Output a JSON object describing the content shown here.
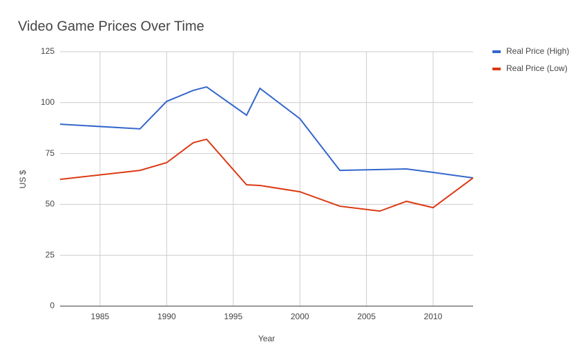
{
  "chart_data": {
    "type": "line",
    "title": "Video Game Prices Over Time",
    "xlabel": "Year",
    "ylabel": "US $",
    "x": [
      1982,
      1988,
      1990,
      1992,
      1993,
      1996,
      1997,
      2000,
      2003,
      2006,
      2008,
      2010,
      2013
    ],
    "series": [
      {
        "name": "Real Price (High)",
        "color": "#3366cc",
        "values": [
          89.4,
          87.1,
          100.6,
          106.0,
          107.7,
          93.8,
          107.0,
          92.1,
          66.7,
          67.1,
          67.4,
          65.7,
          63.0
        ]
      },
      {
        "name": "Real Price (Low)",
        "color": "#dc3912",
        "values": [
          62.3,
          66.7,
          70.5,
          80.3,
          82.0,
          59.6,
          59.3,
          56.2,
          49.1,
          46.7,
          51.5,
          48.4,
          63.0
        ]
      }
    ],
    "xlim": [
      1982,
      2013
    ],
    "xticks": [
      1985,
      1990,
      1995,
      2000,
      2005,
      2010
    ],
    "ylim": [
      0,
      125
    ],
    "yticks": [
      0,
      25,
      50,
      75,
      100,
      125
    ],
    "grid": true,
    "legend": "right"
  }
}
